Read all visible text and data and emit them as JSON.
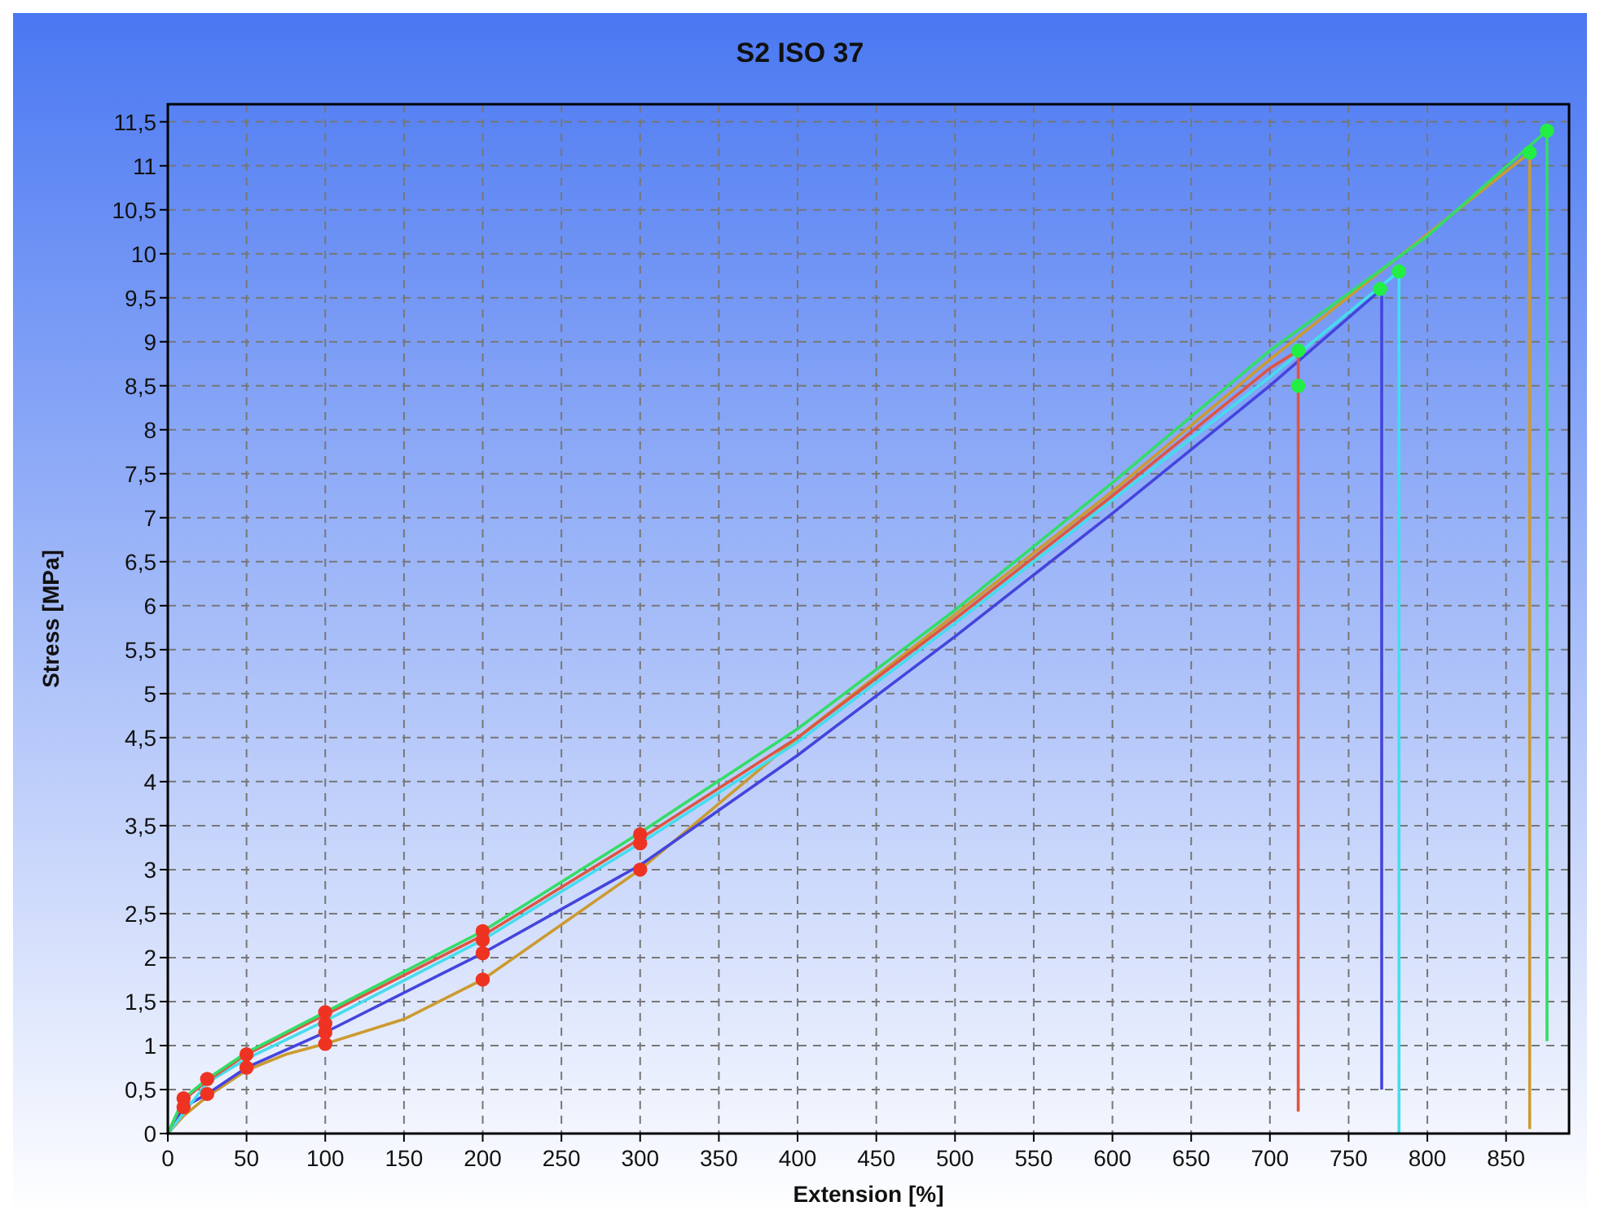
{
  "chart_data": {
    "type": "line",
    "title": "S2 ISO 37",
    "xlabel": "Extension [%]",
    "ylabel": "Stress [MPa]",
    "xlim": [
      0,
      890
    ],
    "ylim": [
      0,
      11.7
    ],
    "xticks": [
      0,
      50,
      100,
      150,
      200,
      250,
      300,
      350,
      400,
      450,
      500,
      550,
      600,
      650,
      700,
      750,
      800,
      850
    ],
    "yticks": [
      0,
      {
        "value": 0.5,
        "label": "0,5"
      },
      1,
      {
        "value": 1.5,
        "label": "1,5"
      },
      2,
      {
        "value": 2.5,
        "label": "2,5"
      },
      3,
      {
        "value": 3.5,
        "label": "3,5"
      },
      4,
      {
        "value": 4.5,
        "label": "4,5"
      },
      5,
      {
        "value": 5.5,
        "label": "5,5"
      },
      6,
      {
        "value": 6.5,
        "label": "6,5"
      },
      7,
      {
        "value": 7.5,
        "label": "7,5"
      },
      8,
      {
        "value": 8.5,
        "label": "8,5"
      },
      9,
      {
        "value": 9.5,
        "label": "9,5"
      },
      10,
      {
        "value": 10.5,
        "label": "10,5"
      },
      11,
      {
        "value": 11.5,
        "label": "11,5"
      }
    ],
    "grid": true,
    "series": [
      {
        "color": "#cc9a30",
        "x": [
          0,
          10,
          25,
          50,
          75,
          100,
          150,
          200,
          300,
          400,
          500,
          600,
          700,
          865,
          865
        ],
        "values": [
          0,
          0.2,
          0.42,
          0.72,
          0.9,
          1.02,
          1.3,
          1.75,
          3.0,
          4.5,
          5.9,
          7.3,
          8.8,
          11.15,
          0.05
        ]
      },
      {
        "color": "#4444dd",
        "x": [
          0,
          10,
          25,
          50,
          100,
          200,
          300,
          400,
          500,
          600,
          700,
          771,
          771
        ],
        "values": [
          0,
          0.3,
          0.45,
          0.75,
          1.15,
          2.05,
          3.05,
          4.3,
          5.65,
          7.05,
          8.5,
          9.6,
          0.5
        ]
      },
      {
        "color": "#44ddee",
        "x": [
          0,
          25,
          50,
          100,
          200,
          300,
          400,
          500,
          600,
          700,
          782,
          782
        ],
        "values": [
          0,
          0.58,
          0.85,
          1.28,
          2.2,
          3.3,
          4.45,
          5.8,
          7.2,
          8.6,
          9.8,
          0
        ]
      },
      {
        "color": "#dd5544",
        "x": [
          0,
          10,
          25,
          50,
          100,
          200,
          300,
          400,
          500,
          600,
          700,
          718,
          718
        ],
        "values": [
          0,
          0.38,
          0.6,
          0.9,
          1.35,
          2.25,
          3.35,
          4.5,
          5.85,
          7.25,
          8.7,
          8.9,
          0.25
        ]
      },
      {
        "color": "#33dd66",
        "x": [
          0,
          10,
          25,
          50,
          100,
          200,
          300,
          400,
          500,
          600,
          700,
          800,
          876,
          876
        ],
        "values": [
          0,
          0.4,
          0.62,
          0.92,
          1.38,
          2.3,
          3.42,
          4.6,
          5.95,
          7.4,
          8.9,
          10.2,
          11.4,
          1.05
        ]
      },
      {
        "type": "scatter",
        "marker": "circle",
        "color": "#ee3322",
        "x": [
          10,
          10,
          25,
          25,
          50,
          50,
          100,
          100,
          100,
          100,
          200,
          200,
          200,
          200,
          300,
          300,
          300
        ],
        "values": [
          0.4,
          0.3,
          0.62,
          0.45,
          0.9,
          0.75,
          1.38,
          1.25,
          1.15,
          1.02,
          2.3,
          2.2,
          2.05,
          1.75,
          3.4,
          3.3,
          3.0
        ]
      },
      {
        "type": "scatter",
        "marker": "circle",
        "color": "#22ee44",
        "x": [
          718,
          718,
          770,
          782,
          865,
          876
        ],
        "values": [
          8.9,
          8.5,
          9.6,
          9.8,
          11.15,
          11.4
        ]
      }
    ]
  }
}
